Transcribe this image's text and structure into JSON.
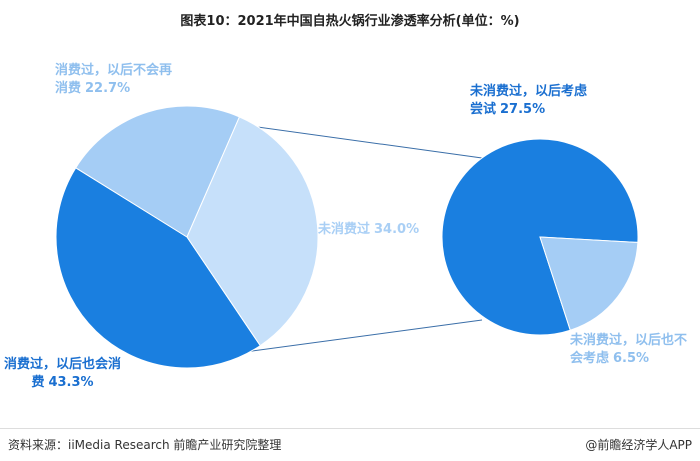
{
  "chart_data": {
    "type": "pie_of_pie",
    "title": "图表10：2021年中国自热火锅行业渗透率分析(单位：%)",
    "pies": [
      {
        "categories": [
          "消费过，以后也会消费",
          "消费过，以后不会再消费",
          "未消费过"
        ],
        "values": [
          43.3,
          22.7,
          34.0
        ],
        "value_labels": [
          "43.3%",
          "22.7%",
          "34.0%"
        ],
        "colors": [
          "#1a7fe0",
          "#a5cdf5",
          "#c6e0fa"
        ],
        "label_colors": [
          "#1a6fd0",
          "#8fbfee",
          "#a9cff5"
        ]
      },
      {
        "categories": [
          "未消费过，以后考虑尝试",
          "未消费过，以后也不会考虑"
        ],
        "values": [
          27.5,
          6.5
        ],
        "value_labels": [
          "27.5%",
          "6.5%"
        ],
        "colors": [
          "#1a7fe0",
          "#a5cdf5"
        ],
        "label_colors": [
          "#1a6fd0",
          "#8fbfee"
        ]
      }
    ],
    "source": "资料来源：iiMedia Research 前瞻产业研究院整理",
    "brand": "@前瞻经济学人APP"
  }
}
